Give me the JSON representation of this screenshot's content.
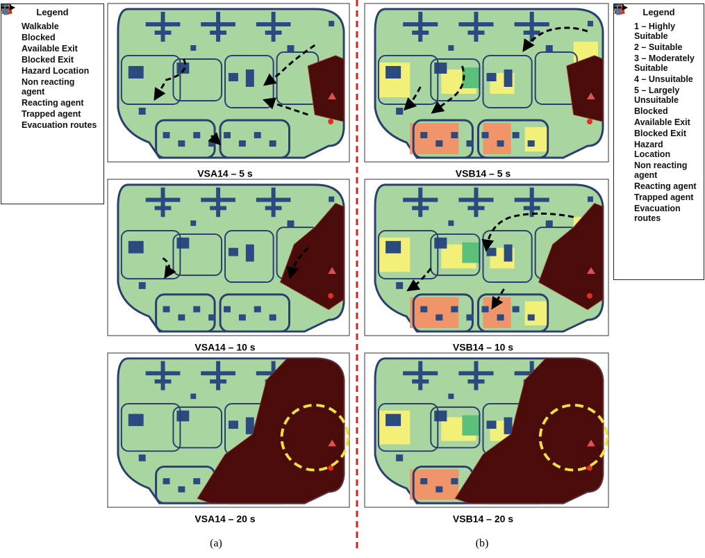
{
  "legend_a": {
    "title": "Legend",
    "items": [
      "Walkable",
      "Blocked",
      "Available Exit",
      "Blocked Exit",
      "Hazard Location",
      "Non reacting agent",
      "Reacting agent",
      "Trapped agent",
      "Evacuation routes"
    ]
  },
  "legend_b": {
    "title": "Legend",
    "items": [
      "1 – Highly Suitable",
      "2 – Suitable",
      "3 – Moderately Suitable",
      "4 – Unsuitable",
      "5 – Largely Unsuitable",
      "Blocked",
      "Available Exit",
      "Blocked Exit",
      "Hazard Location",
      "Non reacting agent",
      "Reacting agent",
      "Trapped agent",
      "Evacuation routes"
    ]
  },
  "figures": [
    {
      "label": "(a)",
      "captions": [
        "VSA14 – 5 s",
        "VSA14 – 10 s",
        "VSA14 – 20 s"
      ]
    },
    {
      "label": "(b)",
      "captions": [
        "VSB14 – 5 s",
        "VSB14 – 10 s",
        "VSB14 – 20 s"
      ]
    }
  ]
}
